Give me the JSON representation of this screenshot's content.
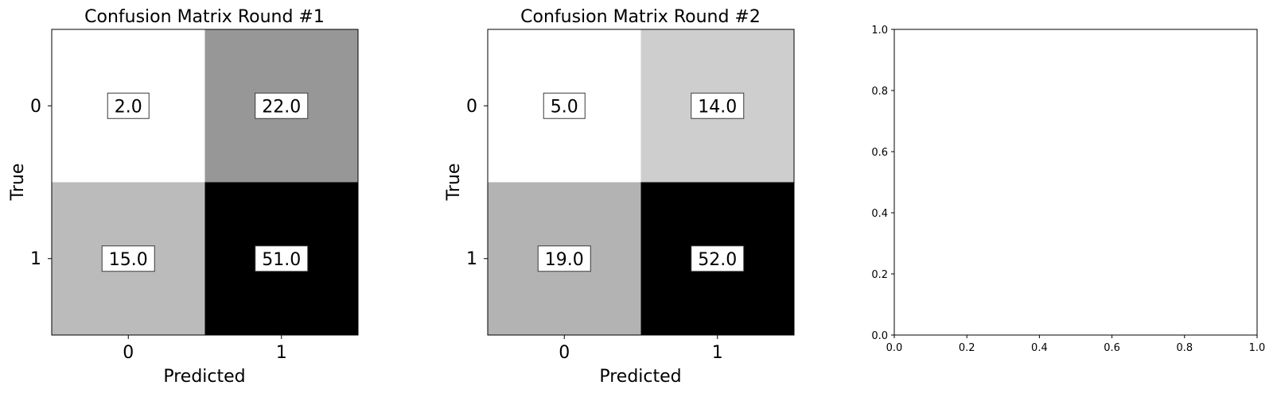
{
  "chart_data": [
    {
      "type": "heatmap",
      "title": "Confusion Matrix Round #1",
      "xlabel": "Predicted",
      "ylabel": "True",
      "x_categories": [
        "0",
        "1"
      ],
      "y_categories": [
        "0",
        "1"
      ],
      "values": [
        [
          2.0,
          22.0
        ],
        [
          15.0,
          51.0
        ]
      ],
      "value_labels": [
        [
          "2.0",
          "22.0"
        ],
        [
          "15.0",
          "51.0"
        ]
      ],
      "colormap": "gray_r"
    },
    {
      "type": "heatmap",
      "title": "Confusion Matrix Round #2",
      "xlabel": "Predicted",
      "ylabel": "True",
      "x_categories": [
        "0",
        "1"
      ],
      "y_categories": [
        "0",
        "1"
      ],
      "values": [
        [
          5.0,
          14.0
        ],
        [
          19.0,
          52.0
        ]
      ],
      "value_labels": [
        [
          "5.0",
          "14.0"
        ],
        [
          "19.0",
          "52.0"
        ]
      ],
      "colormap": "gray_r"
    },
    {
      "type": "scatter",
      "title": "",
      "xlabel": "",
      "ylabel": "",
      "xlim": [
        0.0,
        1.0
      ],
      "ylim": [
        0.0,
        1.0
      ],
      "x_ticks": [
        "0.0",
        "0.2",
        "0.4",
        "0.6",
        "0.8",
        "1.0"
      ],
      "y_ticks": [
        "0.0",
        "0.2",
        "0.4",
        "0.6",
        "0.8",
        "1.0"
      ],
      "series": []
    }
  ]
}
